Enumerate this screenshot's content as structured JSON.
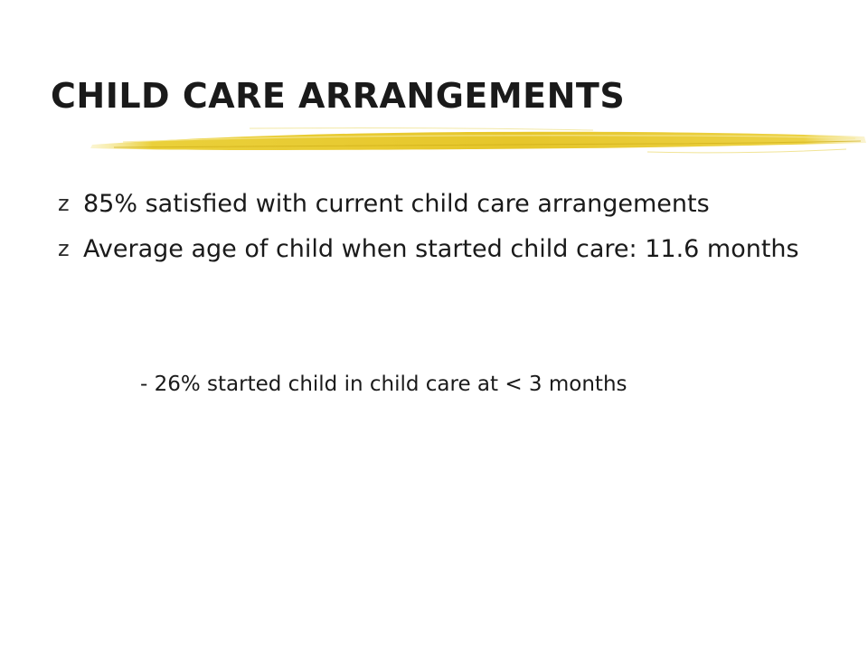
{
  "slide": {
    "title": "CHILD CARE ARRANGEMENTS",
    "accent_color": "#e8d030",
    "bullet_marker_glyph": "z",
    "bullets": [
      {
        "text": "85% satisfied with current child care arrangements"
      },
      {
        "text": "Average age of child when started child care: 11.6 months"
      }
    ],
    "sub_note": "- 26% started child in child care at < 3 months"
  }
}
